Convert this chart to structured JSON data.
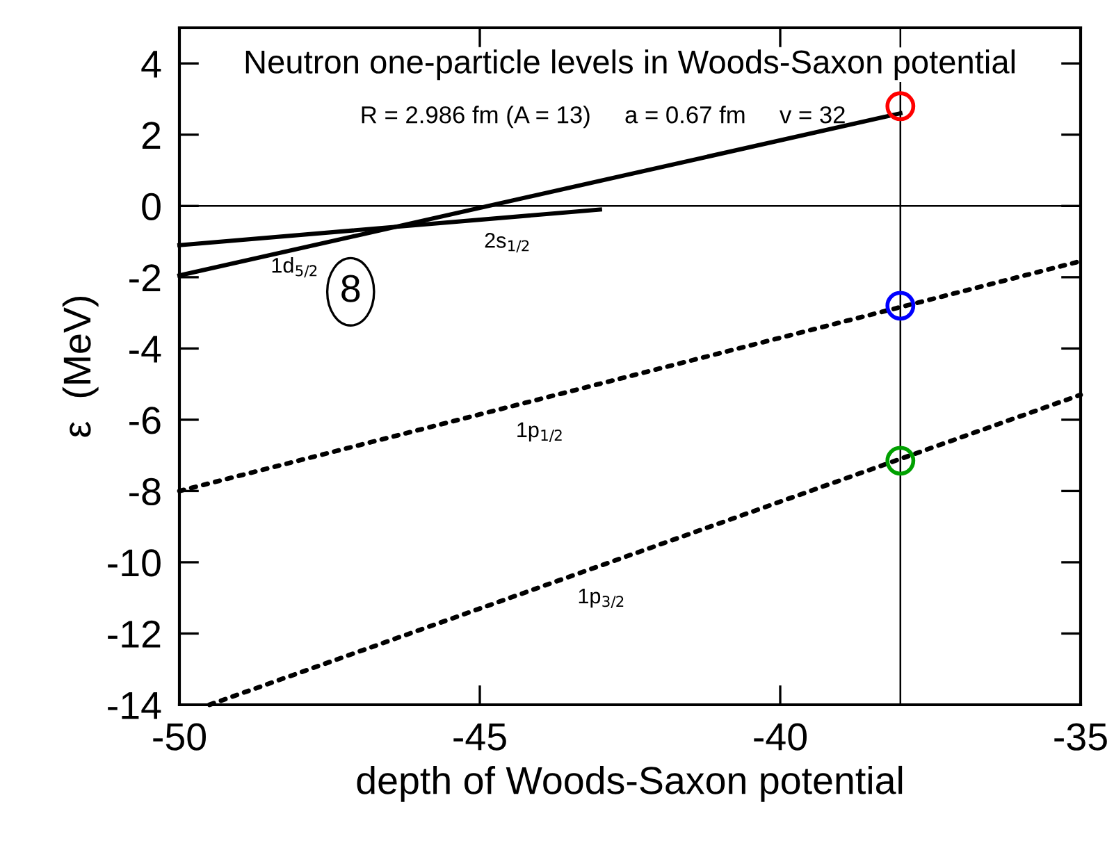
{
  "chart_data": {
    "type": "line",
    "title": "Neutron one-particle levels in Woods-Saxon potential",
    "subtitle": "R = 2.986 fm (A = 13)     a = 0.67 fm     v = 32",
    "xlabel": "depth of Woods-Saxon potential",
    "ylabel": "ε  (MeV)",
    "xlim": [
      -50,
      -35
    ],
    "ylim": [
      -14,
      5
    ],
    "xticks": [
      -50,
      -45,
      -40,
      -35
    ],
    "yticks": [
      -14,
      -12,
      -10,
      -8,
      -6,
      -4,
      -2,
      0,
      2,
      4
    ],
    "grid": false,
    "legend": false,
    "series": [
      {
        "name": "1d$_{5/2}$",
        "color": "#000000",
        "line_style": "solid",
        "x": [
          -50,
          -38
        ],
        "values": [
          -1.95,
          2.6
        ]
      },
      {
        "name": "2s$_{1/2}$",
        "color": "#000000",
        "line_style": "solid",
        "x": [
          -50,
          -43
        ],
        "values": [
          -1.1,
          -0.1
        ]
      },
      {
        "name": "1p$_{1/2}$",
        "color": "#000000",
        "line_style": "dotted",
        "x": [
          -50,
          -35
        ],
        "values": [
          -8.0,
          -1.55
        ]
      },
      {
        "name": "1p$_{3/2}$",
        "color": "#000000",
        "line_style": "dotted",
        "x": [
          -49.5,
          -35
        ],
        "values": [
          -14,
          -5.3
        ]
      },
      {
        "type": "scatter",
        "color": "#ff0000",
        "marker": "circle",
        "x": [
          -38
        ],
        "values": [
          2.8
        ]
      },
      {
        "type": "scatter",
        "color": "#0000ff",
        "marker": "circle",
        "x": [
          -38
        ],
        "values": [
          -2.8
        ]
      },
      {
        "type": "scatter",
        "color": "#00a000",
        "marker": "circle",
        "x": [
          -38
        ],
        "values": [
          -7.15
        ]
      }
    ],
    "ref_lines": [
      {
        "axis": "y",
        "value": 0,
        "color": "#000000"
      },
      {
        "axis": "x",
        "value": -38,
        "color": "#000000"
      }
    ],
    "annotations": [
      "8"
    ]
  }
}
